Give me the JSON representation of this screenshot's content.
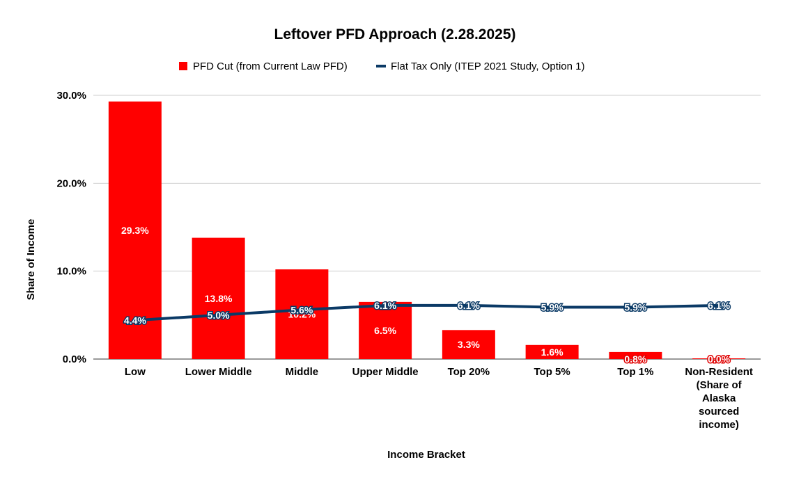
{
  "chart_data": {
    "type": "bar",
    "title": "Leftover PFD Approach (2.28.2025)",
    "xlabel": "Income Bracket",
    "ylabel": "Share of Income",
    "ylim": [
      0,
      30
    ],
    "yticks": [
      "0.0%",
      "10.0%",
      "20.0%",
      "30.0%"
    ],
    "ytick_values": [
      0,
      10,
      20,
      30
    ],
    "grid": true,
    "legend_position": "top",
    "categories": [
      [
        "Low"
      ],
      [
        "Lower Middle"
      ],
      [
        "Middle"
      ],
      [
        "Upper Middle"
      ],
      [
        "Top 20%"
      ],
      [
        "Top 5%"
      ],
      [
        "Top 1%"
      ],
      [
        "Non-Resident",
        "(Share of",
        "Alaska",
        "sourced",
        "income)"
      ]
    ],
    "series": [
      {
        "name": "PFD Cut (from Current Law PFD)",
        "type": "bar",
        "color": "#ff0000",
        "values": [
          29.3,
          13.8,
          10.2,
          6.5,
          3.3,
          1.6,
          0.8,
          0.0
        ],
        "labels": [
          "29.3%",
          "13.8%",
          "10.2%",
          "6.5%",
          "3.3%",
          "1.6%",
          "0.8%",
          "0.0%"
        ]
      },
      {
        "name": "Flat Tax Only (ITEP 2021 Study, Option 1)",
        "type": "line",
        "color": "#0b3a66",
        "values": [
          4.4,
          5.0,
          5.6,
          6.1,
          6.1,
          5.9,
          5.9,
          6.1
        ],
        "labels": [
          "4.4%",
          "5.0%",
          "5.6%",
          "6.1%",
          "6.1%",
          "5.9%",
          "5.9%",
          "6.1%"
        ]
      }
    ]
  }
}
